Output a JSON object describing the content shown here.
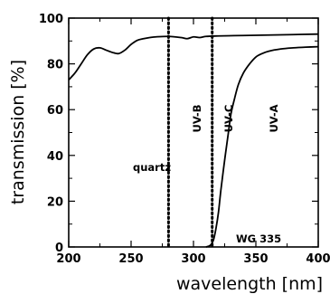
{
  "chart_data": {
    "type": "line",
    "title": "",
    "xlabel": "wavelength [nm]",
    "ylabel": "transmission [%]",
    "xlim": [
      200,
      400
    ],
    "ylim": [
      0,
      100
    ],
    "xticks": [
      200,
      250,
      300,
      350,
      400
    ],
    "yticks": [
      0,
      20,
      40,
      60,
      80,
      100
    ],
    "grid": false,
    "series": [
      {
        "name": "quartz",
        "x": [
          200,
          205,
          210,
          215,
          220,
          225,
          230,
          235,
          240,
          245,
          250,
          255,
          260,
          265,
          270,
          280,
          290,
          295,
          300,
          305,
          310,
          320,
          340,
          360,
          380,
          400
        ],
        "y": [
          73,
          76,
          80,
          84,
          86.5,
          87,
          86,
          85,
          84.5,
          86,
          88.5,
          90.3,
          91,
          91.5,
          91.8,
          92,
          91.5,
          91,
          91.8,
          91.5,
          92,
          92.2,
          92.4,
          92.6,
          92.8,
          93
        ]
      },
      {
        "name": "WG 335",
        "x": [
          310,
          312,
          314,
          316,
          318,
          320,
          322,
          325,
          328,
          330,
          333,
          336,
          340,
          345,
          350,
          355,
          360,
          370,
          380,
          390,
          400
        ],
        "y": [
          0,
          0.3,
          1,
          3,
          8,
          15,
          25,
          38,
          50,
          58,
          65,
          71,
          76,
          80,
          83,
          84.5,
          85.5,
          86.5,
          87,
          87.3,
          87.5
        ]
      }
    ],
    "vlines": [
      280,
      315
    ],
    "bands": [
      "UV-C",
      "UV-B",
      "UV-A"
    ]
  }
}
